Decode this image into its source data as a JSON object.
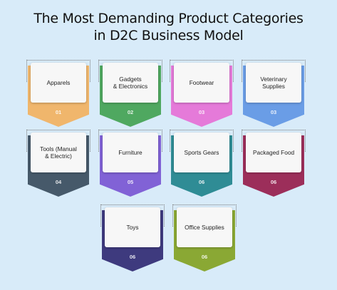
{
  "title": {
    "line1": "The Most Demanding Product Categories",
    "line2": "in D2C Business Model"
  },
  "cards": [
    {
      "label": "Apparels",
      "number": "01",
      "color": "#f0b66c"
    },
    {
      "label": "Gadgets\n& Electronics",
      "number": "02",
      "color": "#4fa860"
    },
    {
      "label": "Footwear",
      "number": "03",
      "color": "#e57ad9"
    },
    {
      "label": "Veterinary\nSupplies",
      "number": "03",
      "color": "#6a9de6"
    },
    {
      "label": "Tools (Manual\n& Electric)",
      "number": "04",
      "color": "#46596a"
    },
    {
      "label": "Furniture",
      "number": "05",
      "color": "#8162d6"
    },
    {
      "label": "Sports Gears",
      "number": "06",
      "color": "#2f8c95"
    },
    {
      "label": "Packaged Food",
      "number": "06",
      "color": "#9c2e5a"
    },
    {
      "label": "Toys",
      "number": "06",
      "color": "#3e3a7e"
    },
    {
      "label": "Office Supplies",
      "number": "06",
      "color": "#8aa834"
    }
  ]
}
